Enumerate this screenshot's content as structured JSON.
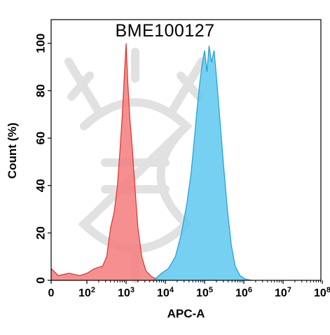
{
  "chart_data": {
    "type": "area",
    "title": "BME100127",
    "xlabel": "APC-A",
    "ylabel": "Count  (%)",
    "x_scale": "biexponential",
    "xlim": [
      0,
      100000000
    ],
    "ylim": [
      0,
      110
    ],
    "grid": false,
    "x_ticks": [
      {
        "value": 0,
        "base": "0",
        "exp": ""
      },
      {
        "value": 100,
        "base": "10",
        "exp": "2"
      },
      {
        "value": 1000,
        "base": "10",
        "exp": "3"
      },
      {
        "value": 10000,
        "base": "10",
        "exp": "4"
      },
      {
        "value": 100000,
        "base": "10",
        "exp": "5"
      },
      {
        "value": 1000000,
        "base": "10",
        "exp": "6"
      },
      {
        "value": 10000000,
        "base": "10",
        "exp": "7"
      },
      {
        "value": 100000000,
        "base": "10",
        "exp": "8"
      }
    ],
    "y_ticks": [
      0,
      20,
      40,
      60,
      80,
      100
    ],
    "series": [
      {
        "color": "#f47c7c",
        "stroke": "#e0302a",
        "points": [
          [
            0,
            5
          ],
          [
            20,
            2
          ],
          [
            50,
            3
          ],
          [
            80,
            2
          ],
          [
            100,
            3
          ],
          [
            160,
            5
          ],
          [
            250,
            6
          ],
          [
            320,
            10
          ],
          [
            400,
            22
          ],
          [
            500,
            29
          ],
          [
            600,
            40
          ],
          [
            700,
            55
          ],
          [
            800,
            70
          ],
          [
            900,
            86
          ],
          [
            1000,
            100
          ],
          [
            1100,
            84
          ],
          [
            1250,
            68
          ],
          [
            1450,
            55
          ],
          [
            1700,
            38
          ],
          [
            2000,
            22
          ],
          [
            2500,
            10
          ],
          [
            3200,
            4
          ],
          [
            4500,
            1.5
          ],
          [
            6000,
            0.6
          ],
          [
            8000,
            0.3
          ],
          [
            10000,
            0
          ]
        ]
      },
      {
        "color": "#5ec8ef",
        "stroke": "#1e9fd6",
        "points": [
          [
            5000,
            0
          ],
          [
            8000,
            3
          ],
          [
            12000,
            5
          ],
          [
            18000,
            10
          ],
          [
            25000,
            19
          ],
          [
            35000,
            32
          ],
          [
            45000,
            45
          ],
          [
            55000,
            60
          ],
          [
            65000,
            73
          ],
          [
            75000,
            83
          ],
          [
            88000,
            92
          ],
          [
            100000,
            97
          ],
          [
            115000,
            88
          ],
          [
            130000,
            99
          ],
          [
            150000,
            92
          ],
          [
            175000,
            97
          ],
          [
            200000,
            86
          ],
          [
            240000,
            70
          ],
          [
            300000,
            50
          ],
          [
            380000,
            30
          ],
          [
            480000,
            15
          ],
          [
            600000,
            6
          ],
          [
            800000,
            2
          ],
          [
            1100000,
            0.5
          ],
          [
            1600000,
            0
          ]
        ]
      }
    ]
  }
}
